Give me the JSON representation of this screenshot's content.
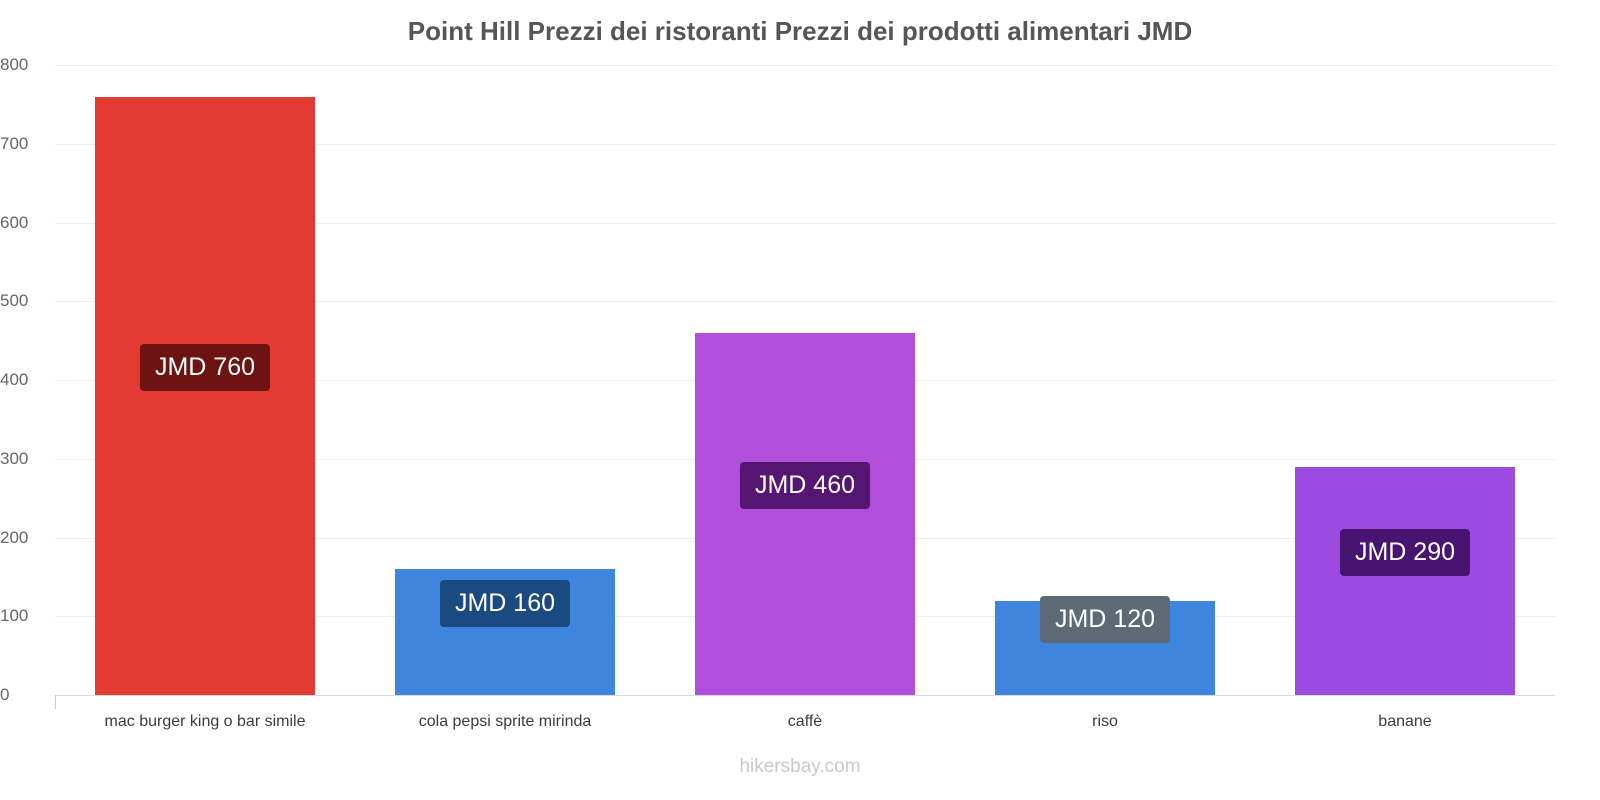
{
  "title": "Point Hill Prezzi dei ristoranti Prezzi dei prodotti alimentari JMD",
  "footer": "hikersbay.com",
  "chart_data": {
    "type": "bar",
    "title": "Point Hill Prezzi dei ristoranti Prezzi dei prodotti alimentari JMD",
    "categories": [
      "mac burger king o bar simile",
      "cola pepsi sprite mirinda",
      "caffè",
      "riso",
      "banane"
    ],
    "values": [
      760,
      160,
      460,
      120,
      290
    ],
    "value_labels": [
      "JMD 760",
      "JMD 160",
      "JMD 460",
      "JMD 120",
      "JMD 290"
    ],
    "bar_colors": [
      "#e23b32",
      "#3d85dd",
      "#b14edb",
      "#3d85dd",
      "#9c4be0"
    ],
    "label_bg_colors": [
      "#6d1412",
      "#1a4a80",
      "#541672",
      "#5d6974",
      "#481472"
    ],
    "label_text_color": "#ffffff",
    "currency": "JMD",
    "xlabel": "",
    "ylabel": "",
    "ylim": [
      0,
      800
    ],
    "ytick_step": 100,
    "grid": "horizontal",
    "legend": "none"
  }
}
